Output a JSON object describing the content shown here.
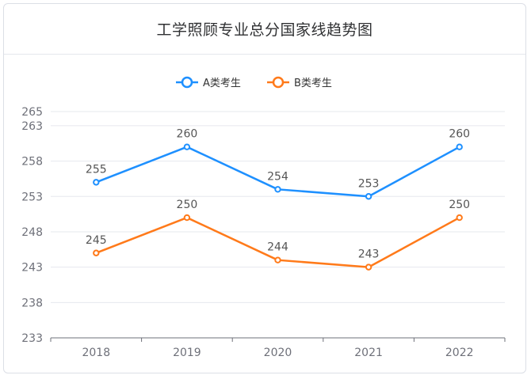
{
  "title": "工学照顾专业总分国家线趋势图",
  "chart_data": {
    "type": "line",
    "title": "工学照顾专业总分国家线趋势图",
    "categories": [
      "2018",
      "2019",
      "2020",
      "2021",
      "2022"
    ],
    "yticks": [
      233,
      238,
      243,
      248,
      253,
      258,
      263,
      265
    ],
    "ylim": [
      233,
      265
    ],
    "grid": true,
    "legend_position": "top-center",
    "series": [
      {
        "name": "A类考生",
        "values": [
          255,
          260,
          254,
          253,
          260
        ],
        "color": "#1e90ff"
      },
      {
        "name": "B类考生",
        "values": [
          245,
          250,
          244,
          243,
          250
        ],
        "color": "#ff7a1a"
      }
    ]
  }
}
